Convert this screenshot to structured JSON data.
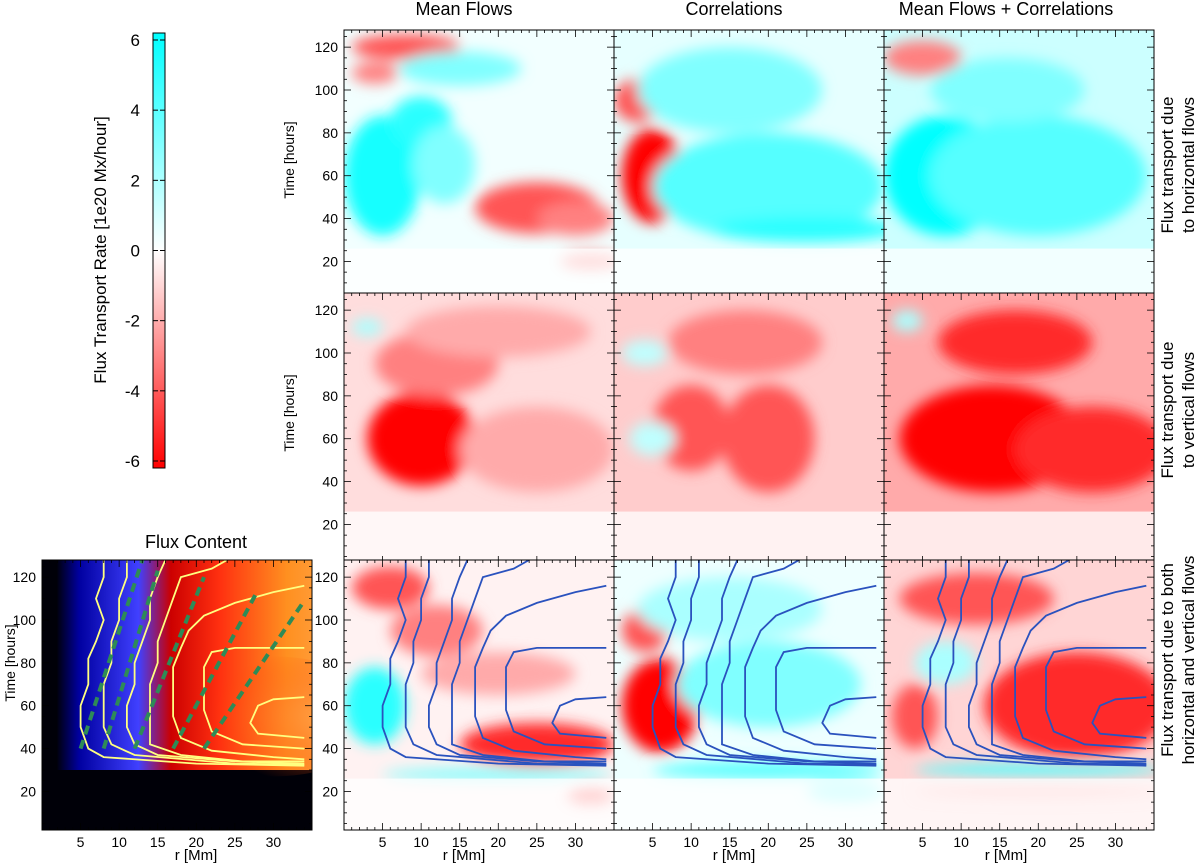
{
  "figure": {
    "colorbar": {
      "label": "Flux Transport Rate [1e20 Mx/hour]",
      "ticks": [
        "6",
        "4",
        "2",
        "0",
        "-2",
        "-4",
        "-6"
      ],
      "tick_values": [
        6,
        4,
        2,
        0,
        -2,
        -4,
        -6
      ],
      "range": [
        -6,
        6
      ],
      "colors": {
        "positive": "#00ffff",
        "zero": "#ffffff",
        "negative": "#ff0000"
      }
    },
    "columns": [
      "Mean Flows",
      "Correlations",
      "Mean Flows + Correlations"
    ],
    "rows": [
      {
        "line1": "Flux transport due",
        "line2": "to horizontal flows"
      },
      {
        "line1": "Flux transport due",
        "line2": "to vertical flows"
      },
      {
        "line1": "Flux transport due to both",
        "line2": "horizontal and vertical flows"
      }
    ],
    "flux_panel": {
      "title": "Flux Content"
    },
    "ylabel": "Time [hours]",
    "xlabel": "r [Mm]",
    "y_ticks": [
      "20",
      "40",
      "60",
      "80",
      "100",
      "120"
    ],
    "x_ticks": [
      "5",
      "10",
      "15",
      "20",
      "25",
      "30"
    ],
    "colors": {
      "contour_blue": "#2a52be",
      "contour_yellow": "#ffff80",
      "dashed_green": "#2e8b57"
    }
  },
  "chart_data": {
    "type": "heatmap",
    "x_range": [
      0,
      35
    ],
    "y_range": [
      2,
      128
    ],
    "xlabel": "r [Mm]",
    "ylabel": "Time [hours]",
    "colorbar_range": [
      -6,
      6
    ],
    "panels": [
      {
        "title": "Flux Content",
        "kind": "flux",
        "blobs": [],
        "background": "dark"
      },
      {
        "title": "Mean Flows",
        "row": 1,
        "col": 1,
        "background": 0.3,
        "blobs": [
          {
            "x": 5,
            "y": 60,
            "rx": 5,
            "ry": 28,
            "v": 5.5
          },
          {
            "x": 10,
            "y": 85,
            "rx": 4,
            "ry": 12,
            "v": 5
          },
          {
            "x": 13,
            "y": 65,
            "rx": 4,
            "ry": 18,
            "v": 3
          },
          {
            "x": 25,
            "y": 45,
            "rx": 8,
            "ry": 12,
            "v": -4
          },
          {
            "x": 30,
            "y": 40,
            "rx": 5,
            "ry": 8,
            "v": -3
          },
          {
            "x": 8,
            "y": 120,
            "rx": 7,
            "ry": 6,
            "v": -4
          },
          {
            "x": 4,
            "y": 108,
            "rx": 3,
            "ry": 5,
            "v": -3
          },
          {
            "x": 15,
            "y": 110,
            "rx": 8,
            "ry": 8,
            "v": 3
          },
          {
            "x": 32,
            "y": 20,
            "rx": 4,
            "ry": 4,
            "v": -3
          }
        ]
      },
      {
        "title": "Correlations",
        "row": 1,
        "col": 2,
        "background": 0.6,
        "blobs": [
          {
            "x": 5,
            "y": 60,
            "rx": 4,
            "ry": 22,
            "v": -7
          },
          {
            "x": 3,
            "y": 95,
            "rx": 3,
            "ry": 10,
            "v": -4
          },
          {
            "x": 20,
            "y": 55,
            "rx": 15,
            "ry": 25,
            "v": 4
          },
          {
            "x": 15,
            "y": 100,
            "rx": 12,
            "ry": 20,
            "v": 3
          },
          {
            "x": 25,
            "y": 35,
            "rx": 12,
            "ry": 6,
            "v": 5
          }
        ]
      },
      {
        "title": "Mean Flows + Correlations",
        "row": 1,
        "col": 3,
        "background": 1.2,
        "blobs": [
          {
            "x": 8,
            "y": 60,
            "rx": 8,
            "ry": 28,
            "v": 6
          },
          {
            "x": 20,
            "y": 60,
            "rx": 14,
            "ry": 28,
            "v": 4
          },
          {
            "x": 5,
            "y": 115,
            "rx": 5,
            "ry": 8,
            "v": -3
          },
          {
            "x": 16,
            "y": 100,
            "rx": 10,
            "ry": 15,
            "v": 3
          }
        ]
      },
      {
        "title": "Mean Flows",
        "row": 2,
        "col": 1,
        "background": -0.8,
        "blobs": [
          {
            "x": 10,
            "y": 60,
            "rx": 7,
            "ry": 22,
            "v": -6
          },
          {
            "x": 12,
            "y": 95,
            "rx": 8,
            "ry": 15,
            "v": -3
          },
          {
            "x": 25,
            "y": 55,
            "rx": 10,
            "ry": 20,
            "v": -2
          },
          {
            "x": 20,
            "y": 110,
            "rx": 12,
            "ry": 12,
            "v": -2
          },
          {
            "x": 3,
            "y": 112,
            "rx": 2,
            "ry": 4,
            "v": 2
          }
        ]
      },
      {
        "title": "Correlations",
        "row": 2,
        "col": 2,
        "background": -1.2,
        "blobs": [
          {
            "x": 10,
            "y": 65,
            "rx": 5,
            "ry": 20,
            "v": -4
          },
          {
            "x": 20,
            "y": 60,
            "rx": 6,
            "ry": 25,
            "v": -4
          },
          {
            "x": 17,
            "y": 105,
            "rx": 10,
            "ry": 15,
            "v": -3
          },
          {
            "x": 4,
            "y": 100,
            "rx": 3,
            "ry": 6,
            "v": 1.5
          },
          {
            "x": 5,
            "y": 60,
            "rx": 3,
            "ry": 8,
            "v": 1.5
          }
        ]
      },
      {
        "title": "Mean Flows + Correlations",
        "row": 2,
        "col": 3,
        "background": -2,
        "blobs": [
          {
            "x": 14,
            "y": 60,
            "rx": 12,
            "ry": 25,
            "v": -6
          },
          {
            "x": 27,
            "y": 55,
            "rx": 10,
            "ry": 20,
            "v": -5
          },
          {
            "x": 17,
            "y": 105,
            "rx": 10,
            "ry": 15,
            "v": -5
          },
          {
            "x": 3,
            "y": 115,
            "rx": 2,
            "ry": 5,
            "v": 2
          }
        ]
      },
      {
        "title": "Mean Flows",
        "row": 3,
        "col": 1,
        "background": -0.3,
        "blobs": [
          {
            "x": 4,
            "y": 60,
            "rx": 4,
            "ry": 18,
            "v": 5
          },
          {
            "x": 25,
            "y": 42,
            "rx": 10,
            "ry": 10,
            "v": -5
          },
          {
            "x": 6,
            "y": 115,
            "rx": 5,
            "ry": 10,
            "v": -4
          },
          {
            "x": 12,
            "y": 95,
            "rx": 6,
            "ry": 12,
            "v": -3
          },
          {
            "x": 20,
            "y": 75,
            "rx": 10,
            "ry": 10,
            "v": -2
          },
          {
            "x": 20,
            "y": 28,
            "rx": 15,
            "ry": 3,
            "v": 3
          },
          {
            "x": 32,
            "y": 18,
            "rx": 3,
            "ry": 4,
            "v": -4
          }
        ]
      },
      {
        "title": "Correlations",
        "row": 3,
        "col": 2,
        "background": 0.4,
        "blobs": [
          {
            "x": 6,
            "y": 60,
            "rx": 5,
            "ry": 22,
            "v": -7
          },
          {
            "x": 4,
            "y": 95,
            "rx": 3,
            "ry": 10,
            "v": -4
          },
          {
            "x": 20,
            "y": 70,
            "rx": 12,
            "ry": 20,
            "v": 3
          },
          {
            "x": 15,
            "y": 105,
            "rx": 12,
            "ry": 15,
            "v": 2
          },
          {
            "x": 20,
            "y": 30,
            "rx": 15,
            "ry": 4,
            "v": 4
          },
          {
            "x": 30,
            "y": 20,
            "rx": 5,
            "ry": 5,
            "v": 3
          }
        ]
      },
      {
        "title": "Mean Flows + Correlations",
        "row": 3,
        "col": 3,
        "background": -1,
        "blobs": [
          {
            "x": 25,
            "y": 60,
            "rx": 12,
            "ry": 25,
            "v": -5
          },
          {
            "x": 12,
            "y": 110,
            "rx": 10,
            "ry": 12,
            "v": -4
          },
          {
            "x": 4,
            "y": 55,
            "rx": 3,
            "ry": 15,
            "v": -4
          },
          {
            "x": 8,
            "y": 80,
            "rx": 4,
            "ry": 10,
            "v": 2
          },
          {
            "x": 20,
            "y": 30,
            "rx": 16,
            "ry": 3,
            "v": 4
          },
          {
            "x": 20,
            "y": 20,
            "rx": 16,
            "ry": 3,
            "v": -2
          }
        ]
      }
    ],
    "contours": [
      [
        [
          8,
          128
        ],
        [
          8,
          120
        ],
        [
          7,
          110
        ],
        [
          8,
          100
        ],
        [
          7,
          90
        ],
        [
          6,
          82
        ],
        [
          6,
          70
        ],
        [
          5,
          60
        ],
        [
          5,
          50
        ],
        [
          6,
          40
        ],
        [
          8,
          36
        ],
        [
          20,
          33
        ],
        [
          34,
          32
        ]
      ],
      [
        [
          11,
          128
        ],
        [
          11,
          120
        ],
        [
          10,
          110
        ],
        [
          10,
          100
        ],
        [
          9,
          90
        ],
        [
          9,
          80
        ],
        [
          8,
          70
        ],
        [
          8,
          60
        ],
        [
          8,
          50
        ],
        [
          9,
          42
        ],
        [
          12,
          37
        ],
        [
          25,
          33
        ],
        [
          34,
          32.5
        ]
      ],
      [
        [
          16,
          128
        ],
        [
          15,
          120
        ],
        [
          14,
          110
        ],
        [
          14,
          100
        ],
        [
          13,
          90
        ],
        [
          12,
          80
        ],
        [
          12,
          70
        ],
        [
          11,
          60
        ],
        [
          11,
          50
        ],
        [
          12,
          42
        ],
        [
          15,
          37
        ],
        [
          25,
          34
        ],
        [
          34,
          33
        ]
      ],
      [
        [
          24,
          128
        ],
        [
          22,
          124
        ],
        [
          18,
          120
        ],
        [
          17,
          110
        ],
        [
          16,
          100
        ],
        [
          15,
          90
        ],
        [
          15,
          80
        ],
        [
          14,
          70
        ],
        [
          14,
          60
        ],
        [
          14,
          50
        ],
        [
          14,
          42
        ],
        [
          18,
          37
        ],
        [
          26,
          34
        ],
        [
          34,
          34
        ]
      ],
      [
        [
          34,
          116
        ],
        [
          30,
          113
        ],
        [
          25,
          108
        ],
        [
          21,
          102
        ],
        [
          19,
          95
        ],
        [
          18,
          87
        ],
        [
          17,
          78
        ],
        [
          17,
          68
        ],
        [
          17,
          55
        ],
        [
          18,
          45
        ],
        [
          22,
          39
        ],
        [
          30,
          36
        ],
        [
          34,
          35
        ]
      ],
      [
        [
          34,
          87
        ],
        [
          25,
          87
        ],
        [
          22,
          85
        ],
        [
          21,
          78
        ],
        [
          21,
          68
        ],
        [
          21,
          58
        ],
        [
          22,
          48
        ],
        [
          26,
          42
        ],
        [
          34,
          40
        ]
      ],
      [
        [
          34,
          64
        ],
        [
          30,
          63
        ],
        [
          28,
          60
        ],
        [
          27,
          52
        ],
        [
          28,
          47
        ],
        [
          34,
          45
        ]
      ]
    ],
    "dashed_lines": [
      [
        [
          5,
          40
        ],
        [
          13,
          128
        ]
      ],
      [
        [
          8,
          40
        ],
        [
          15,
          123
        ]
      ],
      [
        [
          12,
          40
        ],
        [
          21,
          120
        ]
      ],
      [
        [
          17,
          40
        ],
        [
          28,
          114
        ]
      ],
      [
        [
          21,
          40
        ],
        [
          34,
          109
        ]
      ]
    ]
  }
}
